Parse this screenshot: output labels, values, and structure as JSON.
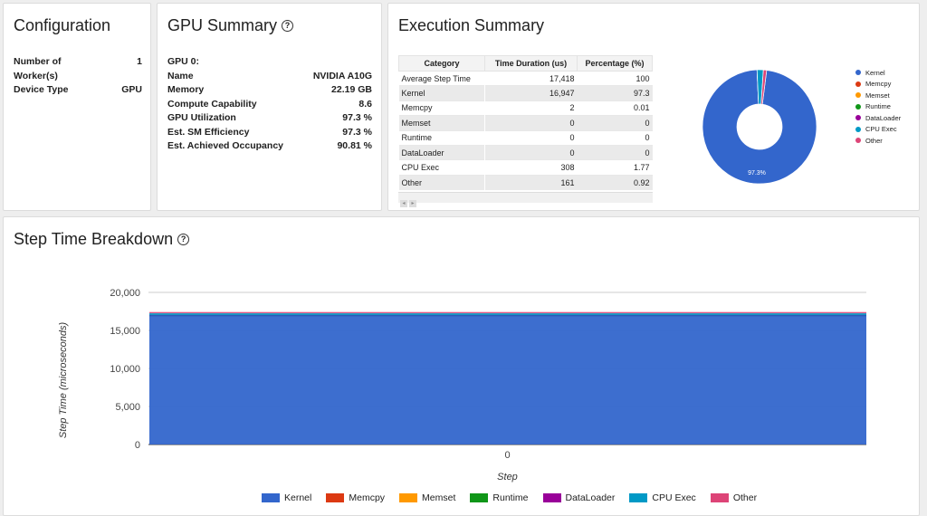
{
  "configuration": {
    "title": "Configuration",
    "rows": [
      {
        "label": "Number of",
        "value": "1"
      },
      {
        "label": "Worker(s)",
        "value": ""
      },
      {
        "label": "Device Type",
        "value": "GPU"
      }
    ]
  },
  "gpu_summary": {
    "title": "GPU Summary",
    "help_icon": "?",
    "rows": [
      {
        "label": "GPU 0:",
        "value": ""
      },
      {
        "label": "Name",
        "value": "NVIDIA A10G"
      },
      {
        "label": "Memory",
        "value": "22.19 GB"
      },
      {
        "label": "Compute Capability",
        "value": "8.6"
      },
      {
        "label": "GPU Utilization",
        "value": "97.3 %"
      },
      {
        "label": "Est. SM Efficiency",
        "value": "97.3 %"
      },
      {
        "label": "Est. Achieved Occupancy",
        "value": "90.81 %"
      }
    ]
  },
  "execution_summary": {
    "title": "Execution Summary",
    "headers": [
      "Category",
      "Time Duration (us)",
      "Percentage (%)"
    ],
    "rows": [
      {
        "category": "Average Step Time",
        "time": "17,418",
        "pct": "100"
      },
      {
        "category": "Kernel",
        "time": "16,947",
        "pct": "97.3"
      },
      {
        "category": "Memcpy",
        "time": "2",
        "pct": "0.01"
      },
      {
        "category": "Memset",
        "time": "0",
        "pct": "0"
      },
      {
        "category": "Runtime",
        "time": "0",
        "pct": "0"
      },
      {
        "category": "DataLoader",
        "time": "0",
        "pct": "0"
      },
      {
        "category": "CPU Exec",
        "time": "308",
        "pct": "1.77"
      },
      {
        "category": "Other",
        "time": "161",
        "pct": "0.92"
      }
    ],
    "scroll_left": "◂",
    "scroll_right": "▸",
    "pie": {
      "slice_label": "97.3%",
      "legend": [
        "Kernel",
        "Memcpy",
        "Memset",
        "Runtime",
        "DataLoader",
        "CPU Exec",
        "Other"
      ],
      "values": [
        97.3,
        0.01,
        0,
        0,
        0,
        1.77,
        0.92
      ]
    }
  },
  "step_time": {
    "title": "Step Time Breakdown",
    "help_icon": "?"
  },
  "colors": {
    "Kernel": "#3366cc",
    "Memcpy": "#dc3912",
    "Memset": "#ff9900",
    "Runtime": "#109618",
    "DataLoader": "#990099",
    "CPU Exec": "#0099c6",
    "Other": "#dd4477"
  },
  "chart_data": {
    "type": "area",
    "stacked": true,
    "x": [
      0
    ],
    "xlabel": "Step",
    "ylabel": "Step Time (microseconds)",
    "ylim": [
      0,
      20000
    ],
    "yticks": [
      "0",
      "5,000",
      "10,000",
      "15,000",
      "20,000"
    ],
    "xticks": [
      "0"
    ],
    "series": [
      {
        "name": "Kernel",
        "values": [
          16947
        ]
      },
      {
        "name": "Memcpy",
        "values": [
          2
        ]
      },
      {
        "name": "Memset",
        "values": [
          0
        ]
      },
      {
        "name": "Runtime",
        "values": [
          0
        ]
      },
      {
        "name": "DataLoader",
        "values": [
          0
        ]
      },
      {
        "name": "CPU Exec",
        "values": [
          308
        ]
      },
      {
        "name": "Other",
        "values": [
          161
        ]
      }
    ],
    "legend_position": "bottom"
  }
}
